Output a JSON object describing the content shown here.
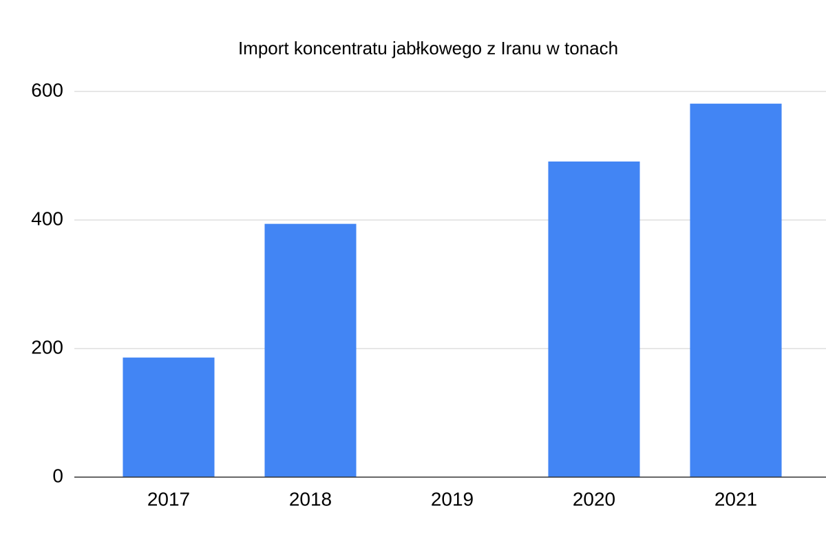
{
  "chart_data": {
    "type": "bar",
    "title": "Import koncentratu jabłkowego z Iranu w tonach",
    "categories": [
      "2017",
      "2018",
      "2019",
      "2020",
      "2021"
    ],
    "values": [
      186,
      394,
      0,
      491,
      581
    ],
    "color": "#4285f4",
    "ylim": [
      0,
      600
    ],
    "yticks": [
      0,
      200,
      400,
      600
    ],
    "grid": true
  }
}
